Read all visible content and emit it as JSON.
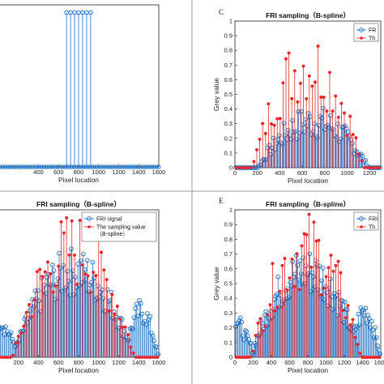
{
  "colors": {
    "fri": "#1f6fbf",
    "samp": "#e8262b",
    "axis": "#222222",
    "divider": "#9a9a9a"
  },
  "chart_data": [
    {
      "id": "top-left",
      "type": "stem",
      "panel_label": "",
      "title": "",
      "xlabel": "Pixel location",
      "ylabel": "",
      "xlim": [
        0,
        1600
      ],
      "ylim": [
        0,
        1.05
      ],
      "xticks": [
        400,
        600,
        800,
        1000,
        1200,
        1400,
        1600
      ],
      "yticks": [],
      "legend": [],
      "series": [
        {
          "role": "fri",
          "x": [
            680,
            720,
            760,
            800,
            840,
            880,
            920
          ],
          "y": [
            1,
            1,
            1,
            1,
            1,
            1,
            1
          ]
        }
      ],
      "baseline_markers": true
    },
    {
      "id": "top-right",
      "type": "stem",
      "panel_label": "C",
      "title": "FRI sampling（B-spline）",
      "xlabel": "Pixel location",
      "ylabel": "Grey value",
      "xlim": [
        0,
        1300
      ],
      "ylim": [
        0,
        1
      ],
      "xticks": [
        0,
        200,
        400,
        600,
        800,
        1000,
        1200
      ],
      "yticks": [
        0,
        0.1,
        0.2,
        0.3,
        0.4,
        0.5,
        0.6,
        0.7,
        0.8,
        0.9,
        1
      ],
      "legend": [
        {
          "role": "fri",
          "label": "FR"
        },
        {
          "role": "samp",
          "label": "Th"
        }
      ],
      "legend_position": "top-right",
      "series": [
        {
          "role": "fri",
          "model": "dome",
          "peak_x": 700,
          "peak_y": 0.43,
          "n": 100
        },
        {
          "role": "samp",
          "model": "dome",
          "peak_x": 650,
          "peak_y": 0.97,
          "n": 50
        }
      ]
    },
    {
      "id": "bottom-left",
      "type": "stem",
      "panel_label": "",
      "title": "FRI sampling（B-spline）",
      "xlabel": "Pixel location",
      "ylabel": "",
      "xlim": [
        0,
        1600
      ],
      "ylim": [
        0,
        1
      ],
      "xticks": [
        0,
        200,
        400,
        600,
        800,
        1000,
        1200,
        1400,
        1600
      ],
      "yticks": [],
      "legend": [
        {
          "role": "fri",
          "label": "FRI signal"
        },
        {
          "role": "samp",
          "label": "The sampling value（B-spline）"
        }
      ],
      "legend_position": "top-right",
      "series": [
        {
          "role": "fri",
          "model": "dome_side",
          "peak_x": 750,
          "peak_y": 0.75,
          "n": 120
        },
        {
          "role": "samp",
          "model": "dome",
          "peak_x": 750,
          "peak_y": 1.0,
          "n": 60
        }
      ]
    },
    {
      "id": "bottom-right",
      "type": "stem",
      "panel_label": "E",
      "title": "FRI sampling（B-spline）",
      "xlabel": "Pixel location",
      "ylabel": "Grey value",
      "xlim": [
        0,
        1600
      ],
      "ylim": [
        0,
        1
      ],
      "xticks": [
        0,
        200,
        400,
        600,
        800,
        1000,
        1200,
        1400,
        1600
      ],
      "yticks": [
        0,
        0.1,
        0.2,
        0.3,
        0.4,
        0.5,
        0.6,
        0.7,
        0.8,
        0.9,
        1
      ],
      "legend": [
        {
          "role": "fri",
          "label": "FRI"
        },
        {
          "role": "samp",
          "label": "Th"
        }
      ],
      "legend_position": "top-right",
      "series": [
        {
          "role": "fri",
          "model": "dome_side",
          "peak_x": 780,
          "peak_y": 0.75,
          "n": 120
        },
        {
          "role": "samp",
          "model": "dome",
          "peak_x": 780,
          "peak_y": 1.0,
          "n": 60
        }
      ]
    }
  ]
}
